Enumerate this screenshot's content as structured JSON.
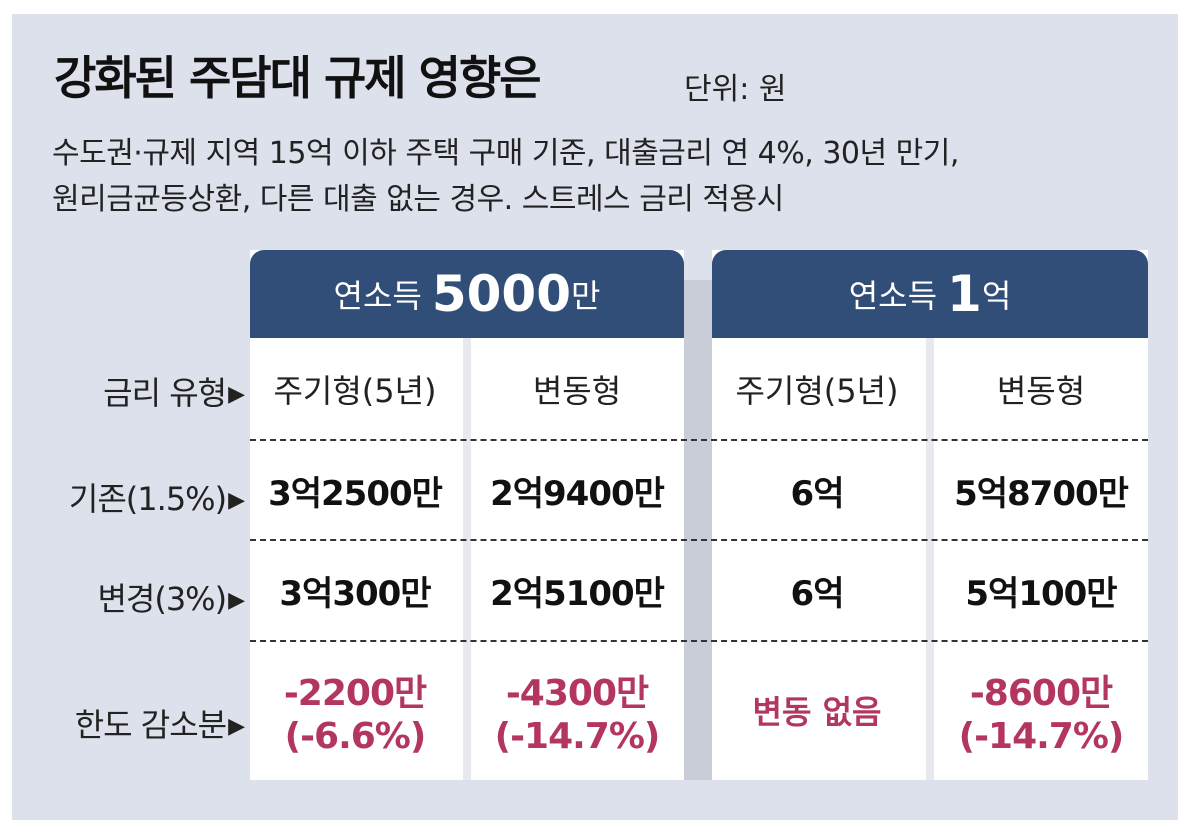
{
  "title": "강화된 주담대 규제 영향은",
  "unit": "단위: 원",
  "conditions": [
    "수도권·규제 지역 15억 이하 주택 구매 기준, 대출금리 연 4%, 30년 만기,",
    "원리금균등상환, 다른 대출 없는 경우. 스트레스 금리 적용시"
  ],
  "colors": {
    "header": "#314e78",
    "decrease": "#b3365e",
    "background": "#dde1ec"
  },
  "row_labels": {
    "rate_type": "금리 유형",
    "current": "기존(1.5%)",
    "changed": "변경(3%)",
    "reduction": "한도 감소분",
    "arrow": "▶"
  },
  "chart_data": {
    "type": "table",
    "groups": [
      {
        "label": "연소득",
        "amount": "5000",
        "amount_suffix": "만",
        "columns": [
          {
            "type": "주기형(5년)",
            "current": "3억2500만",
            "changed": "3억300만",
            "reduction": "-2200만",
            "reduction_pct": "(-6.6%)"
          },
          {
            "type": "변동형",
            "current": "2억9400만",
            "changed": "2억5100만",
            "reduction": "-4300만",
            "reduction_pct": "(-14.7%)"
          }
        ]
      },
      {
        "label": "연소득",
        "amount": "1",
        "amount_suffix": "억",
        "columns": [
          {
            "type": "주기형(5년)",
            "current": "6억",
            "changed": "6억",
            "reduction": "변동 없음",
            "reduction_pct": ""
          },
          {
            "type": "변동형",
            "current": "5억8700만",
            "changed": "5억100만",
            "reduction": "-8600만",
            "reduction_pct": "(-14.7%)"
          }
        ]
      }
    ]
  }
}
